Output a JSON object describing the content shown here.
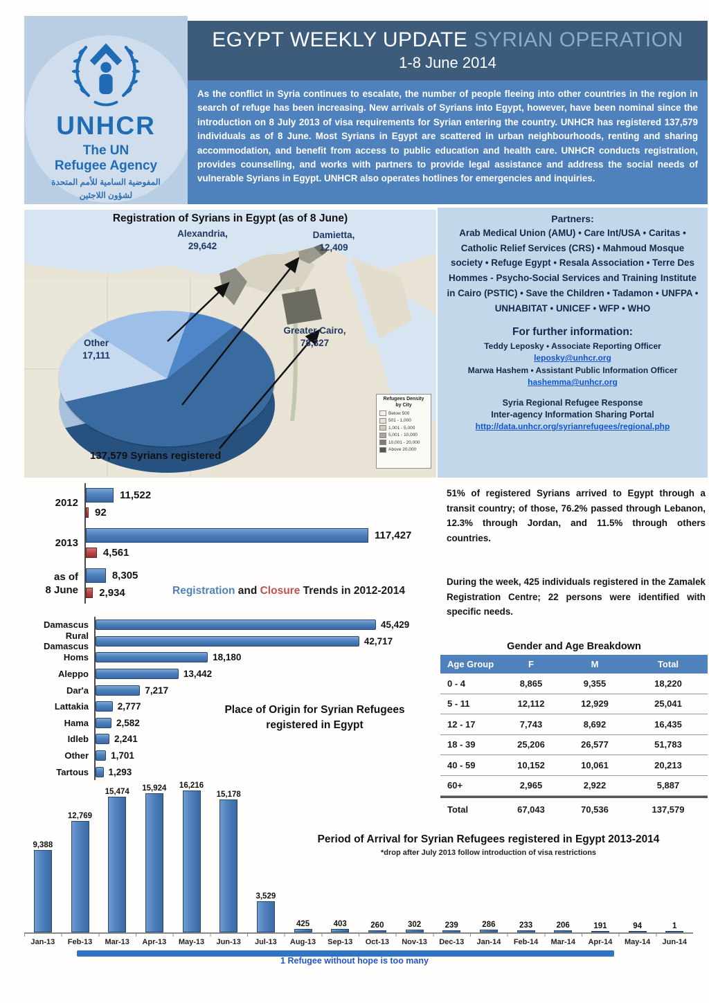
{
  "header": {
    "logo": {
      "org": "UNHCR",
      "tagline_line1": "The UN",
      "tagline_line2": "Refugee Agency",
      "arabic_line1": "المفوضية السامية للأمم المتحدة",
      "arabic_line2": "لشؤون اللاجئين"
    },
    "title_main": "EGYPT WEEKLY UPDATE",
    "title_accent": "SYRIAN OPERATION",
    "subtitle": "1-8 June 2014",
    "intro": "As the conflict in Syria continues to escalate, the number of people fleeing into other countries in the region in search of refuge has been increasing. New arrivals of Syrians into Egypt, however, have been nominal since the introduction on 8 July 2013 of visa requirements for Syrian entering the country. UNHCR has registered 137,579 individuals as of 8 June. Most Syrians in Egypt are scattered in urban neighbourhoods, renting and sharing accommodation, and benefit from access to public education and health care. UNHCR conducts registration, provides counselling, and works with partners to provide legal assistance and address the social needs of vulnerable Syrians in Egypt. UNHCR also operates hotlines for emergencies and inquiries."
  },
  "map": {
    "title": "Registration of Syrians in Egypt (as of 8 June)",
    "callouts": {
      "alexandria": {
        "name": "Alexandria,",
        "value": "29,642"
      },
      "damietta": {
        "name": "Damietta,",
        "value": "12,409"
      },
      "greater_cairo": {
        "name": "Greater Cairo,",
        "value": "78,327"
      },
      "other": {
        "name": "Other",
        "value": "17,111"
      }
    },
    "total_label": "137,579 Syrians registered",
    "legend": {
      "title_line1": "Refugees Density",
      "title_line2": "by City",
      "items": [
        "Below 500",
        "501 - 1,000",
        "1,001 - 5,000",
        "5,001 - 10,000",
        "10,001 - 20,000",
        "Above 20,000"
      ],
      "swatches": [
        "#f4f1ea",
        "#e7e1d1",
        "#cfc9b8",
        "#aaa69a",
        "#807d72",
        "#585650"
      ]
    }
  },
  "partners": {
    "title": "Partners:",
    "text": "Arab Medical Union (AMU) • Care Int/USA • Caritas • Catholic Relief Services (CRS) • Mahmoud Mosque society • Refuge Egypt • Resala Association • Terre Des Hommes - Psycho-Social Services and Training Institute in Cairo (PSTIC) • Save the Children • Tadamon • UNFPA • UNHABITAT • UNICEF • WFP • WHO"
  },
  "info": {
    "title": "For further information:",
    "contact1": "Teddy Leposky • Associate Reporting Officer",
    "email1": "leposky@unhcr.org",
    "contact2": "Marwa Hashem • Assistant Public Information Officer",
    "email2": "hashemma@unhcr.org",
    "portal_line1": "Syria Regional Refugee Response",
    "portal_line2": "Inter-agency Information Sharing Portal",
    "url": "http://data.unhcr.org/syrianrefugees/regional.php"
  },
  "paragraphs": {
    "p1": "51% of registered Syrians arrived to Egypt through a transit country; of those, 76.2% passed through Lebanon, 12.3% through Jordan, and 11.5% through others countries.",
    "p2": "During the week, 425 individuals registered in the Zamalek Registration Centre; 22 persons were identified with specific needs."
  },
  "gender_table": {
    "title": "Gender and Age Breakdown",
    "headers": [
      "Age Group",
      "F",
      "M",
      "Total"
    ],
    "rows": [
      [
        "0 - 4",
        "8,865",
        "9,355",
        "18,220"
      ],
      [
        "5 - 11",
        "12,112",
        "12,929",
        "25,041"
      ],
      [
        "12 - 17",
        "7,743",
        "8,692",
        "16,435"
      ],
      [
        "18 - 39",
        "25,206",
        "26,577",
        "51,783"
      ],
      [
        "40 - 59",
        "10,152",
        "10,061",
        "20,213"
      ],
      [
        "60+",
        "2,965",
        "2,922",
        "5,887"
      ]
    ],
    "total_row": [
      "Total",
      "67,043",
      "70,536",
      "137,579"
    ]
  },
  "chart_data": [
    {
      "type": "pie",
      "title": "Registration of Syrians in Egypt (as of 8 June)",
      "total": 137579,
      "start_angle_deg": 302,
      "slices": [
        {
          "label": "Alexandria",
          "value": 29642,
          "color": "#9ec0e8",
          "side_color": "#7ba3cc"
        },
        {
          "label": "Damietta",
          "value": 12409,
          "color": "#4f86c9",
          "side_color": "#3c6ba3"
        },
        {
          "label": "Greater Cairo",
          "value": 78327,
          "color": "#3a6ba0",
          "side_color": "#27517f"
        },
        {
          "label": "Other",
          "value": 17111,
          "color": "#c8daf0",
          "side_color": "#a8c2de"
        }
      ]
    },
    {
      "type": "bar",
      "orientation": "horizontal",
      "title": "Registration and Closure Trends in 2012-2014",
      "title_parts": [
        {
          "text": "Registration",
          "color": "#4f81bd"
        },
        {
          "text": " and ",
          "color": "#1a1a1a"
        },
        {
          "text": "Closure",
          "color": "#c0504d"
        },
        {
          "text": " Trends in 2012-2014",
          "color": "#1a1a1a"
        }
      ],
      "categories": [
        "2012",
        "2013",
        "as of\n8 June"
      ],
      "series": [
        {
          "name": "Registration",
          "color": "#4f81bd",
          "values": [
            11522,
            117427,
            8305
          ]
        },
        {
          "name": "Closure",
          "color": "#b94a48",
          "values": [
            92,
            4561,
            2934
          ]
        }
      ],
      "xlim": [
        0,
        120000
      ]
    },
    {
      "type": "bar",
      "orientation": "horizontal",
      "title": "Place of Origin for Syrian Refugees registered in Egypt",
      "categories": [
        "Damascus",
        "Rural Damascus",
        "Homs",
        "Aleppo",
        "Dar'a",
        "Lattakia",
        "Hama",
        "Idleb",
        "Other",
        "Tartous"
      ],
      "values": [
        45429,
        42717,
        18180,
        13442,
        7217,
        2777,
        2582,
        2241,
        1701,
        1293
      ],
      "bar_color": "#4f81bd",
      "xlim": [
        0,
        48000
      ]
    },
    {
      "type": "bar",
      "orientation": "vertical",
      "title": "Period of Arrival for Syrian Refugees registered in Egypt 2013-2014",
      "subtitle": "*drop after July 2013 follow introduction of visa restrictions",
      "categories": [
        "Jan-13",
        "Feb-13",
        "Mar-13",
        "Apr-13",
        "May-13",
        "Jun-13",
        "Jul-13",
        "Aug-13",
        "Sep-13",
        "Oct-13",
        "Nov-13",
        "Dec-13",
        "Jan-14",
        "Feb-14",
        "Mar-14",
        "Apr-14",
        "May-14",
        "Jun-14"
      ],
      "values": [
        9388,
        12769,
        15474,
        15924,
        16216,
        15178,
        3529,
        425,
        403,
        260,
        302,
        239,
        286,
        233,
        206,
        191,
        94,
        1
      ],
      "bar_color": "#4f81bd",
      "ylim": [
        0,
        16500
      ]
    }
  ],
  "footer": {
    "note": "1 Refugee without hope is too many"
  }
}
